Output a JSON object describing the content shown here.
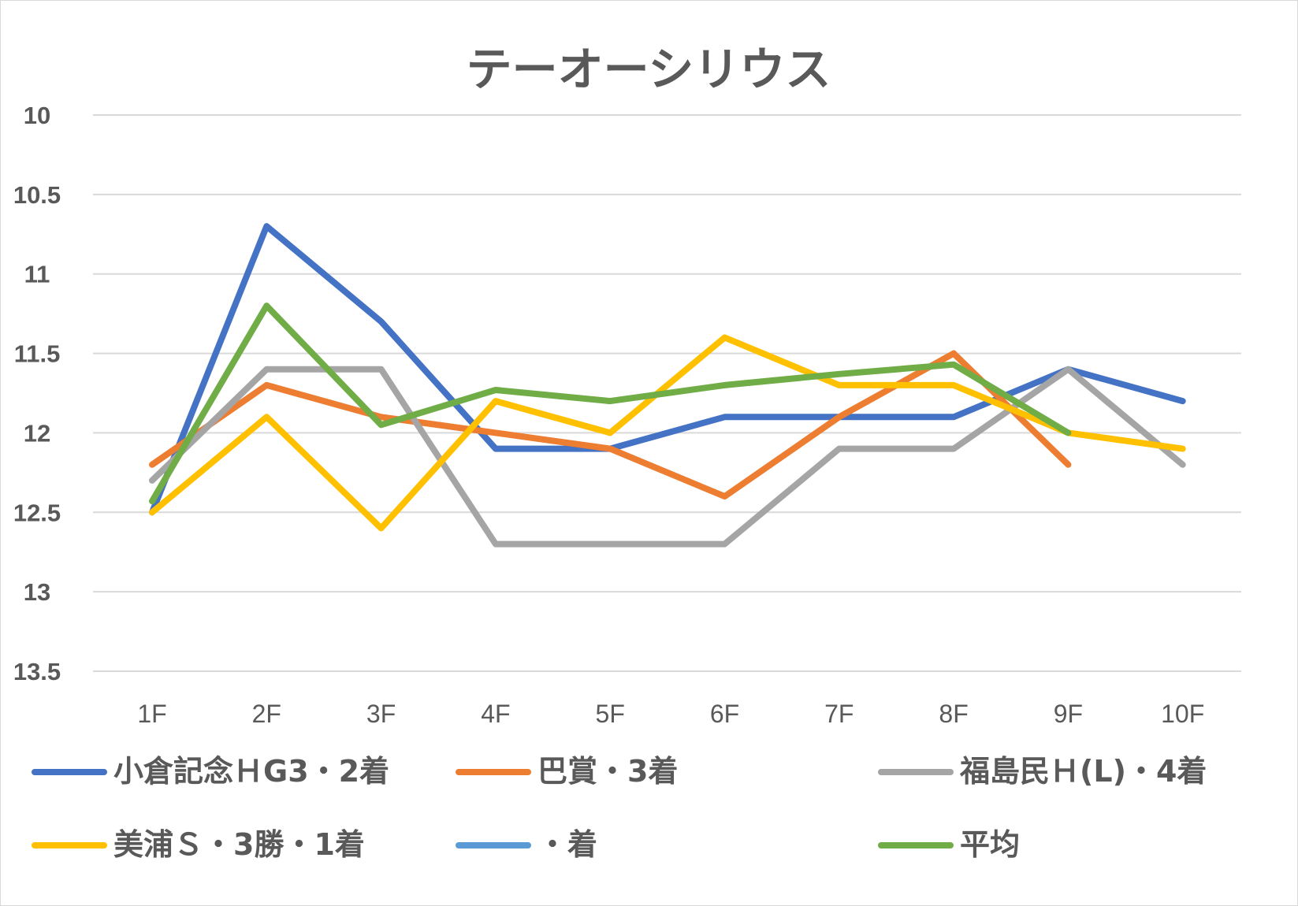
{
  "chart_data": {
    "type": "line",
    "title": "テーオーシリウス",
    "xlabel": "",
    "ylabel": "",
    "y_axis": {
      "inverted": true,
      "ylim": [
        10,
        13.5
      ],
      "ticks": [
        "10",
        "10.5",
        "11",
        "11.5",
        "12",
        "12.5",
        "13",
        "13.5"
      ],
      "tick_values": [
        10,
        10.5,
        11,
        11.5,
        12,
        12.5,
        13,
        13.5
      ]
    },
    "grid": true,
    "legend_position": "bottom",
    "categories": [
      "1F",
      "2F",
      "3F",
      "4F",
      "5F",
      "6F",
      "7F",
      "8F",
      "9F",
      "10F"
    ],
    "series": [
      {
        "name": "小倉記念ＨG3・2着",
        "color": "#4472c4",
        "values": [
          12.5,
          10.7,
          11.3,
          12.1,
          12.1,
          11.9,
          11.9,
          11.9,
          11.6,
          11.8
        ]
      },
      {
        "name": "巴賞・3着",
        "color": "#ed7d31",
        "values": [
          12.2,
          11.7,
          11.9,
          12.0,
          12.1,
          12.4,
          11.9,
          11.5,
          12.2,
          null
        ]
      },
      {
        "name": "福島民Ｈ(L)・4着",
        "color": "#a5a5a5",
        "values": [
          12.3,
          11.6,
          11.6,
          12.7,
          12.7,
          12.7,
          12.1,
          12.1,
          11.6,
          12.2
        ]
      },
      {
        "name": "美浦Ｓ・3勝・1着",
        "color": "#ffc000",
        "values": [
          12.5,
          11.9,
          12.6,
          11.8,
          12.0,
          11.4,
          11.7,
          11.7,
          12.0,
          12.1
        ]
      },
      {
        "name": "・着",
        "color": "#5b9bd5",
        "values": [
          null,
          null,
          null,
          null,
          null,
          null,
          null,
          null,
          null,
          null
        ]
      },
      {
        "name": "平均",
        "color": "#70ad47",
        "values": [
          12.43,
          11.2,
          11.95,
          11.73,
          11.8,
          11.7,
          11.63,
          11.57,
          12.0,
          null
        ]
      }
    ]
  }
}
